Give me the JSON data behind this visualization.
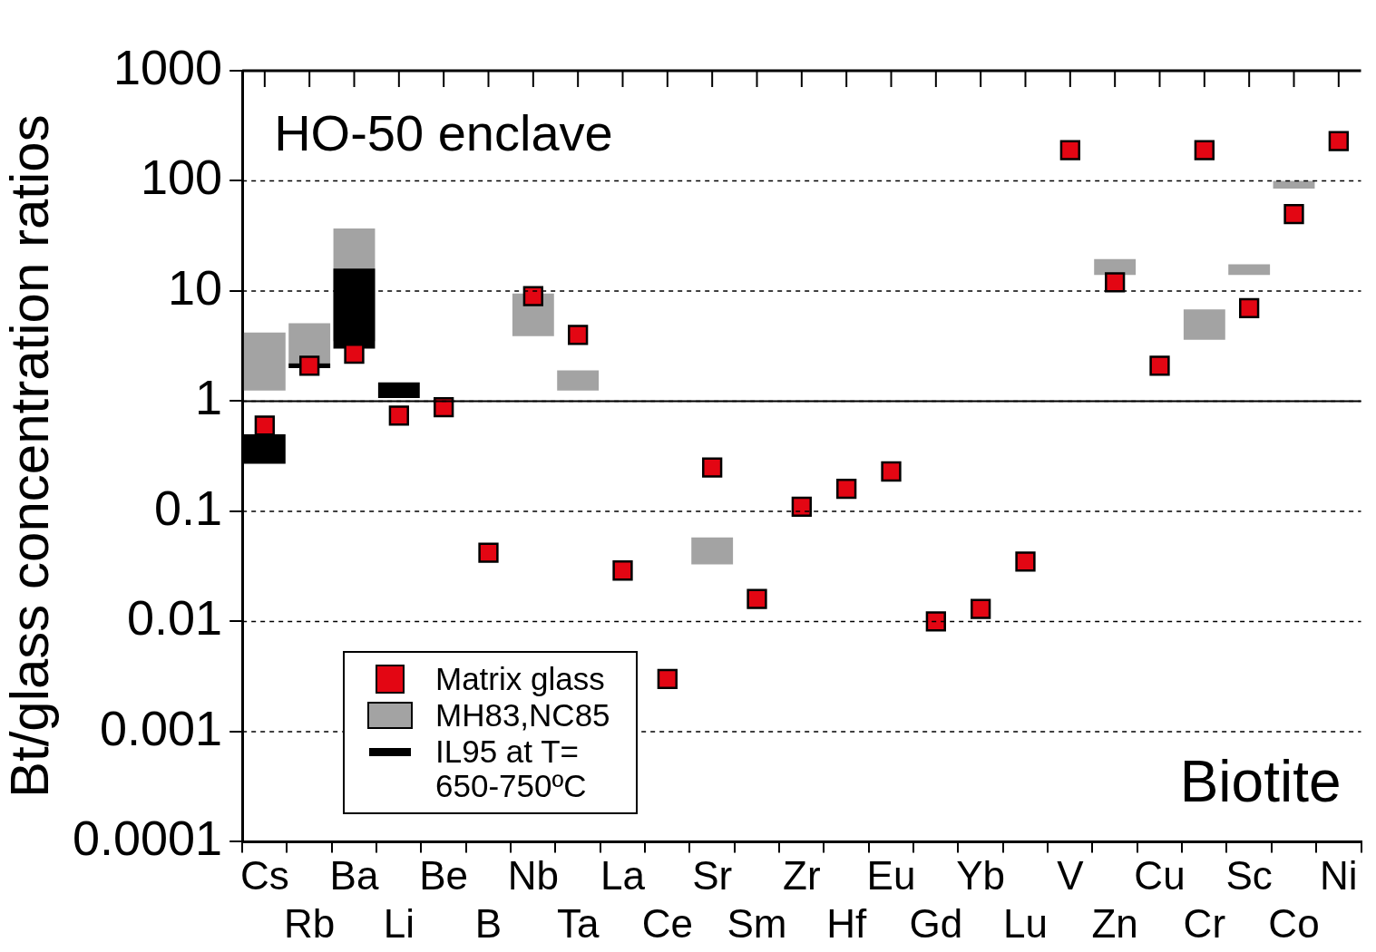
{
  "chart_data": {
    "type": "bar",
    "ylabel": "Bt/glass concentration ratios",
    "annotations": [
      "HO-50 enclave",
      "Biotite"
    ],
    "categories": [
      "Cs",
      "Rb",
      "Ba",
      "Li",
      "Be",
      "B",
      "Nb",
      "Ta",
      "La",
      "Ce",
      "Sr",
      "Sm",
      "Zr",
      "Hf",
      "Eu",
      "Gd",
      "Yb",
      "Lu",
      "V",
      "Zn",
      "Cu",
      "Cr",
      "Sc",
      "Co",
      "Ni"
    ],
    "series": [
      {
        "name": "Matrix glass",
        "type": "scatter",
        "marker": "square",
        "color": "#e30613",
        "values": [
          0.6,
          2.1,
          2.7,
          0.74,
          0.88,
          0.042,
          9,
          4,
          0.029,
          0.003,
          0.25,
          0.016,
          0.11,
          0.16,
          0.23,
          0.01,
          0.013,
          0.035,
          190,
          12,
          2.1,
          190,
          7,
          50,
          230
        ]
      },
      {
        "name": "MH83,NC85",
        "color": "#a3a3a3",
        "base": [
          1.25,
          2.2,
          3.5,
          null,
          null,
          null,
          3.9,
          1.25,
          null,
          null,
          0.033,
          null,
          null,
          null,
          null,
          null,
          null,
          null,
          null,
          14,
          null,
          3.6,
          14,
          85,
          null
        ],
        "values": [
          2.95,
          2.9,
          33.5,
          null,
          null,
          null,
          5.6,
          0.65,
          null,
          null,
          0.025,
          null,
          null,
          null,
          null,
          null,
          null,
          null,
          null,
          5.5,
          null,
          3.2,
          3.5,
          15,
          null
        ]
      },
      {
        "name": "IL95 at T= 650-750ºC",
        "color": "#000000",
        "base": [
          0.27,
          2,
          3,
          1.07,
          null,
          null,
          null,
          null,
          null,
          null,
          null,
          null,
          null,
          null,
          null,
          null,
          null,
          null,
          null,
          null,
          null,
          null,
          null,
          null,
          null
        ],
        "values": [
          0.23,
          0.2,
          13,
          0.41,
          null,
          null,
          null,
          null,
          null,
          null,
          null,
          null,
          null,
          null,
          null,
          null,
          null,
          null,
          null,
          null,
          null,
          null,
          null,
          null,
          null
        ]
      }
    ],
    "log": "y",
    "ylim": [
      0.0001,
      1000
    ],
    "yticks": [
      0.0001,
      0.001,
      0.01,
      0.1,
      1,
      10,
      100,
      1000
    ],
    "grid": "y",
    "ref_lines": [
      {
        "axis": "y",
        "value": 1,
        "line_style": "solid",
        "color": "#000000"
      }
    ],
    "legend": "bottom left"
  }
}
